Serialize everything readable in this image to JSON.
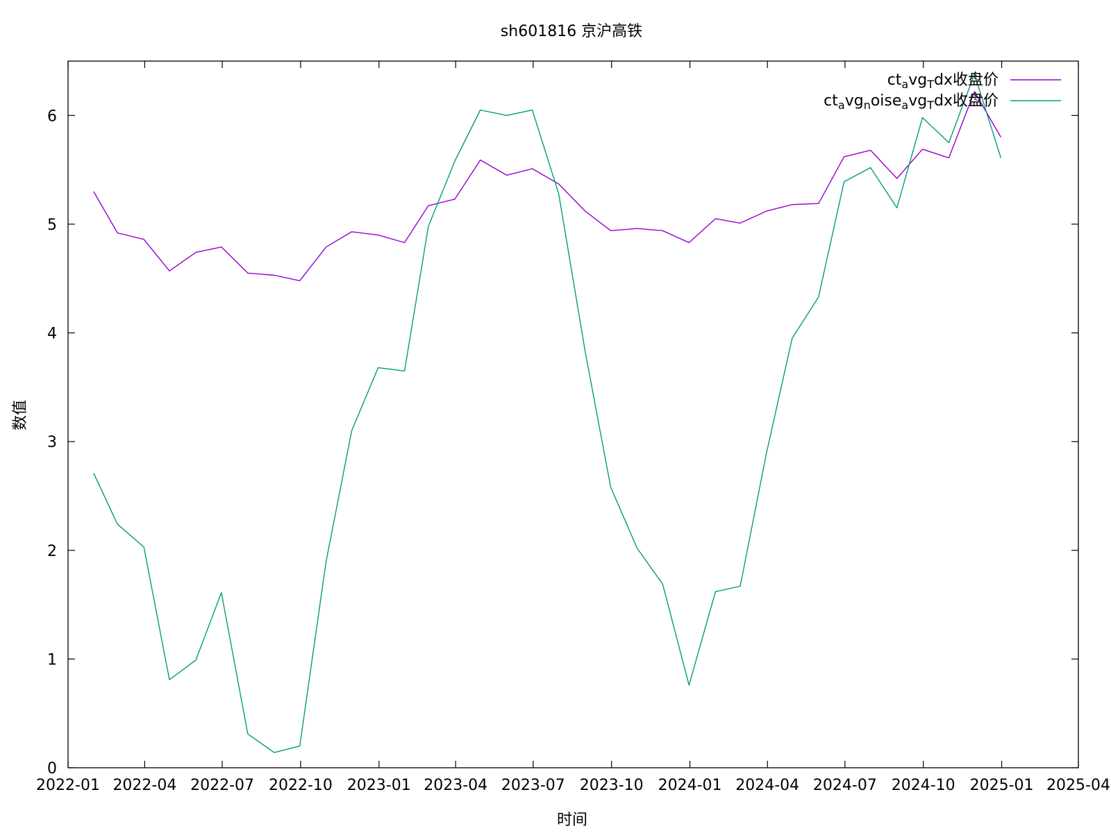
{
  "chart_data": {
    "type": "line",
    "title": "sh601816 京沪高铁",
    "xlabel": "时间",
    "ylabel": "数值",
    "ylim": [
      0,
      6.5
    ],
    "xlim": [
      "2022-01-01",
      "2025-04-01"
    ],
    "yticks": [
      0,
      1,
      2,
      3,
      4,
      5,
      6
    ],
    "xticks": [
      "2022-01",
      "2022-04",
      "2022-07",
      "2022-10",
      "2023-01",
      "2023-04",
      "2023-07",
      "2023-10",
      "2024-01",
      "2024-04",
      "2024-07",
      "2024-10",
      "2025-01",
      "2025-04"
    ],
    "legend_position": "top-right",
    "grid": false,
    "x": [
      "2022-01-31",
      "2022-02-28",
      "2022-03-31",
      "2022-04-30",
      "2022-05-31",
      "2022-06-30",
      "2022-07-31",
      "2022-08-31",
      "2022-09-30",
      "2022-10-31",
      "2022-11-30",
      "2022-12-31",
      "2023-01-31",
      "2023-02-28",
      "2023-03-31",
      "2023-04-30",
      "2023-05-31",
      "2023-06-30",
      "2023-07-31",
      "2023-08-31",
      "2023-09-30",
      "2023-10-31",
      "2023-11-30",
      "2023-12-31",
      "2024-01-31",
      "2024-02-29",
      "2024-03-31",
      "2024-04-30",
      "2024-05-31",
      "2024-06-30",
      "2024-07-31",
      "2024-08-31",
      "2024-09-30",
      "2024-10-31",
      "2024-11-30",
      "2024-12-31"
    ],
    "series": [
      {
        "name_parts": [
          [
            "ct",
            ""
          ],
          [
            "a",
            "sub"
          ],
          [
            "vg",
            ""
          ],
          [
            "T",
            "sub"
          ],
          [
            "dx收盘价",
            ""
          ]
        ],
        "color": "#9400d3",
        "values": [
          5.3,
          4.92,
          4.86,
          4.57,
          4.74,
          4.79,
          4.55,
          4.53,
          4.48,
          4.79,
          4.93,
          4.9,
          4.83,
          5.17,
          5.23,
          5.59,
          5.45,
          5.51,
          5.37,
          5.12,
          4.94,
          4.96,
          4.94,
          4.83,
          5.05,
          5.01,
          5.12,
          5.18,
          5.19,
          5.62,
          5.68,
          5.42,
          5.69,
          5.61,
          6.22,
          5.8
        ]
      },
      {
        "name_parts": [
          [
            "ct",
            ""
          ],
          [
            "a",
            "sub"
          ],
          [
            "vg",
            ""
          ],
          [
            "n",
            "sub"
          ],
          [
            "oise",
            ""
          ],
          [
            "a",
            "sub"
          ],
          [
            "vg",
            ""
          ],
          [
            "T",
            "sub"
          ],
          [
            "dx收盘价",
            ""
          ]
        ],
        "color": "#009e73",
        "values": [
          2.71,
          2.24,
          2.03,
          0.81,
          0.99,
          1.61,
          0.31,
          0.14,
          0.2,
          1.9,
          3.1,
          3.68,
          3.65,
          4.98,
          5.58,
          6.05,
          6.0,
          6.05,
          5.28,
          3.83,
          2.58,
          2.02,
          1.69,
          0.76,
          1.62,
          1.67,
          2.9,
          3.95,
          4.33,
          5.39,
          5.52,
          5.15,
          5.98,
          5.75,
          6.38,
          5.61
        ]
      }
    ]
  }
}
